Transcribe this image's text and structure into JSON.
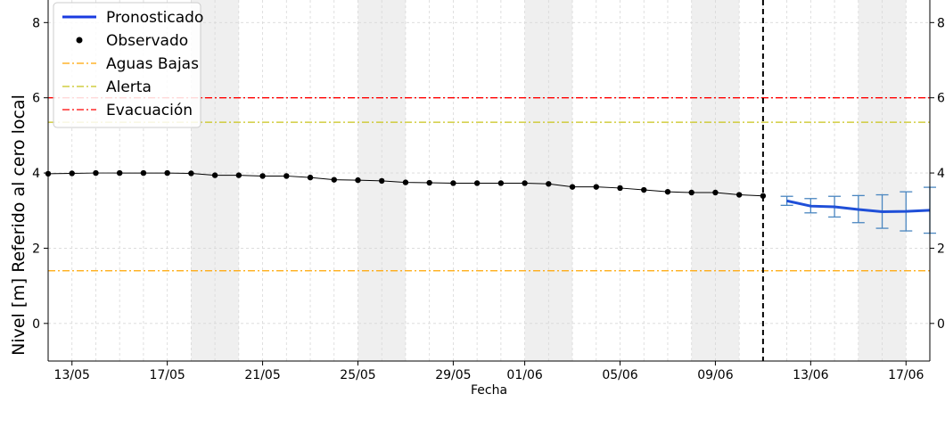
{
  "chart_data": {
    "type": "line",
    "xlabel": "Fecha",
    "ylabel": "Nivel [m] Referido al cero local",
    "ylim": [
      -1.0,
      8.6
    ],
    "yticks": [
      0,
      2,
      4,
      6,
      8
    ],
    "xlim": [
      "2024-05-12",
      "2024-06-18"
    ],
    "xticks": [
      "13/05",
      "17/05",
      "21/05",
      "25/05",
      "29/05",
      "01/06",
      "05/06",
      "09/06",
      "13/06",
      "17/06"
    ],
    "grid": true,
    "weekend_shading": true,
    "legend_position": "upper-left",
    "forecast_start": "2024-06-11",
    "series": [
      {
        "name": "Pronosticado",
        "kind": "forecast",
        "color": "#1f4fd8",
        "errorbar_color": "#4a86c0",
        "x": [
          "2024-06-12",
          "2024-06-13",
          "2024-06-14",
          "2024-06-15",
          "2024-06-16",
          "2024-06-17",
          "2024-06-18"
        ],
        "y": [
          3.26,
          3.12,
          3.1,
          3.03,
          2.97,
          2.98,
          3.01
        ],
        "y_low": [
          3.14,
          2.94,
          2.83,
          2.68,
          2.53,
          2.46,
          2.4
        ],
        "y_high": [
          3.38,
          3.32,
          3.38,
          3.4,
          3.42,
          3.5,
          3.62
        ]
      },
      {
        "name": "Observado",
        "kind": "observed",
        "color": "#000000",
        "x": [
          "2024-05-12",
          "2024-05-13",
          "2024-05-14",
          "2024-05-15",
          "2024-05-16",
          "2024-05-17",
          "2024-05-18",
          "2024-05-19",
          "2024-05-20",
          "2024-05-21",
          "2024-05-22",
          "2024-05-23",
          "2024-05-24",
          "2024-05-25",
          "2024-05-26",
          "2024-05-27",
          "2024-05-28",
          "2024-05-29",
          "2024-05-30",
          "2024-05-31",
          "2024-06-01",
          "2024-06-02",
          "2024-06-03",
          "2024-06-04",
          "2024-06-05",
          "2024-06-06",
          "2024-06-07",
          "2024-06-08",
          "2024-06-09",
          "2024-06-10",
          "2024-06-11"
        ],
        "y": [
          3.98,
          3.99,
          4.0,
          4.0,
          4.0,
          4.0,
          3.99,
          3.94,
          3.94,
          3.92,
          3.92,
          3.88,
          3.82,
          3.81,
          3.79,
          3.75,
          3.74,
          3.73,
          3.73,
          3.73,
          3.73,
          3.71,
          3.63,
          3.63,
          3.6,
          3.55,
          3.5,
          3.48,
          3.48,
          3.42,
          3.39
        ]
      }
    ],
    "thresholds": [
      {
        "name": "Aguas Bajas",
        "value": 1.4,
        "color": "#ffa500"
      },
      {
        "name": "Alerta",
        "value": 5.35,
        "color": "#c8c41a"
      },
      {
        "name": "Evacuación",
        "value": 6.0,
        "color": "#ff0000"
      }
    ]
  }
}
